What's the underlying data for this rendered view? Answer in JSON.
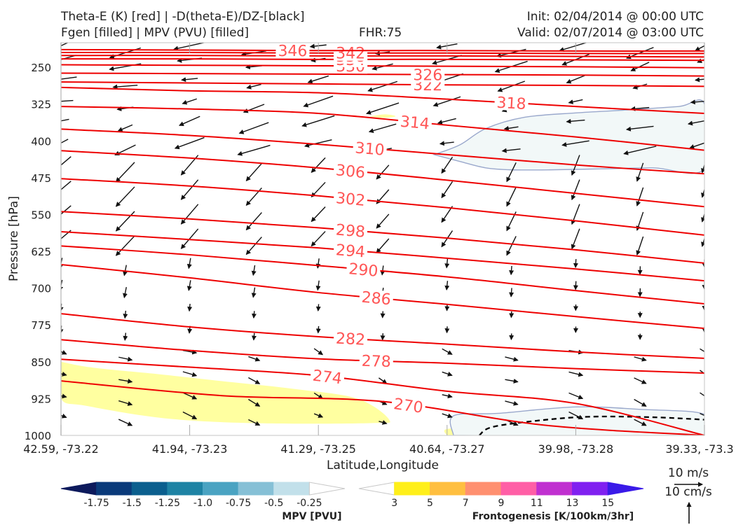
{
  "header": {
    "title_line1": "Theta-E (K) [red] | -D(theta-E)/DZ-[black]",
    "title_line2": "Fgen [filled] | MPV (PVU) [filled]",
    "fhr": "FHR:75",
    "init": "Init: 02/04/2014 @ 00:00 UTC",
    "valid": "Valid: 02/07/2014 @ 03:00 UTC"
  },
  "chart_data": {
    "type": "cross-section",
    "xlabel": "Latitude,Longitude",
    "ylabel": "Pressure [hPa]",
    "x_ticks": [
      "42.59, -73.22",
      "41.94, -73.23",
      "41.29, -73.25",
      "40.64, -73.27",
      "39.98, -73.28",
      "39.33, -73.3"
    ],
    "y_ticks": [
      250,
      325,
      400,
      475,
      550,
      625,
      700,
      775,
      850,
      925,
      1000
    ],
    "ylim": [
      1000,
      200
    ],
    "theta_e_contours": [
      {
        "label": "270",
        "y": [
          889,
          919,
          931,
          979,
          1000
        ],
        "label_x": 2.7
      },
      {
        "label": "274",
        "y": [
          845,
          861,
          878,
          910,
          935,
          1000
        ],
        "label_x": 2.07
      },
      {
        "label": "278",
        "y": [
          805,
          827,
          844,
          853,
          864,
          873
        ],
        "label_x": 2.45
      },
      {
        "label": "282",
        "y": [
          752,
          779,
          799,
          814,
          830,
          843
        ],
        "label_x": 2.25
      },
      {
        "label": "286",
        "y": [
          652,
          679,
          709,
          733,
          758,
          782
        ],
        "label_x": 2.45
      },
      {
        "label": "290",
        "y": [
          614,
          632,
          654,
          677,
          705,
          732
        ],
        "label_x": 2.35
      },
      {
        "label": "294",
        "y": [
          585,
          601,
          618,
          639,
          661,
          685
        ],
        "label_x": 2.25
      },
      {
        "label": "298",
        "y": [
          544,
          559,
          577,
          598,
          622,
          649
        ],
        "label_x": 2.25
      },
      {
        "label": "302",
        "y": [
          477,
          492,
          512,
          536,
          563,
          592
        ],
        "label_x": 2.25
      },
      {
        "label": "306",
        "y": [
          420,
          435,
          455,
          480,
          507,
          534
        ],
        "label_x": 2.25
      },
      {
        "label": "310",
        "y": [
          376,
          389,
          407,
          428,
          449,
          467
        ],
        "label_x": 2.4
      },
      {
        "label": "314",
        "y": [
          330,
          335,
          344,
          368,
          392,
          419
        ],
        "label_x": 2.75
      },
      {
        "label": "318",
        "y": [
          291,
          298,
          302,
          315,
          330,
          344
        ],
        "label_x": 3.5
      },
      {
        "label": "322",
        "y": [
          280,
          282,
          284,
          286,
          287,
          289
        ],
        "label_x": 2.85
      },
      {
        "label": "326",
        "y": [
          262,
          263,
          264,
          265,
          266,
          268
        ],
        "label_x": 2.85
      },
      {
        "label": "330",
        "y": [
          245,
          246,
          247,
          248,
          249,
          251
        ],
        "label_x": 2.25
      },
      {
        "label": "334",
        "y": [
          233,
          233,
          234,
          234,
          235,
          236
        ],
        "label_x": 2.25
      },
      {
        "label": "338",
        "y": [
          226,
          226,
          227,
          227,
          228,
          229
        ],
        "label_x": 2.25
      },
      {
        "label": "342",
        "y": [
          220,
          220,
          221,
          221,
          222,
          222
        ],
        "label_x": 2.25
      },
      {
        "label": "346",
        "y": [
          214,
          215,
          216,
          216,
          217,
          217
        ],
        "label_x": 1.8
      }
    ],
    "mpv_colorbar": {
      "label": "MPV [PVU]",
      "ticks": [
        "-1.75",
        "-1.5",
        "-1.25",
        "-1.0",
        "-0.75",
        "-0.5",
        "-0.25"
      ],
      "colors": [
        "#0d1a5c",
        "#0a3a7a",
        "#0b5f8e",
        "#1e83a4",
        "#4aa3c2",
        "#86c0d6",
        "#c2e0ea",
        "#ffffff"
      ]
    },
    "fgen_colorbar": {
      "label": "Frontogenesis [K/100km/3hr]",
      "ticks": [
        "3",
        "5",
        "7",
        "9",
        "11",
        "13",
        "15"
      ],
      "colors": [
        "#ffffff",
        "#ffef1a",
        "#ffbf40",
        "#ff9070",
        "#ff5fa6",
        "#c030d0",
        "#8020f0",
        "#3a1ae8"
      ]
    },
    "reference_vectors": [
      "10 m/s",
      "10 cm/s"
    ]
  }
}
